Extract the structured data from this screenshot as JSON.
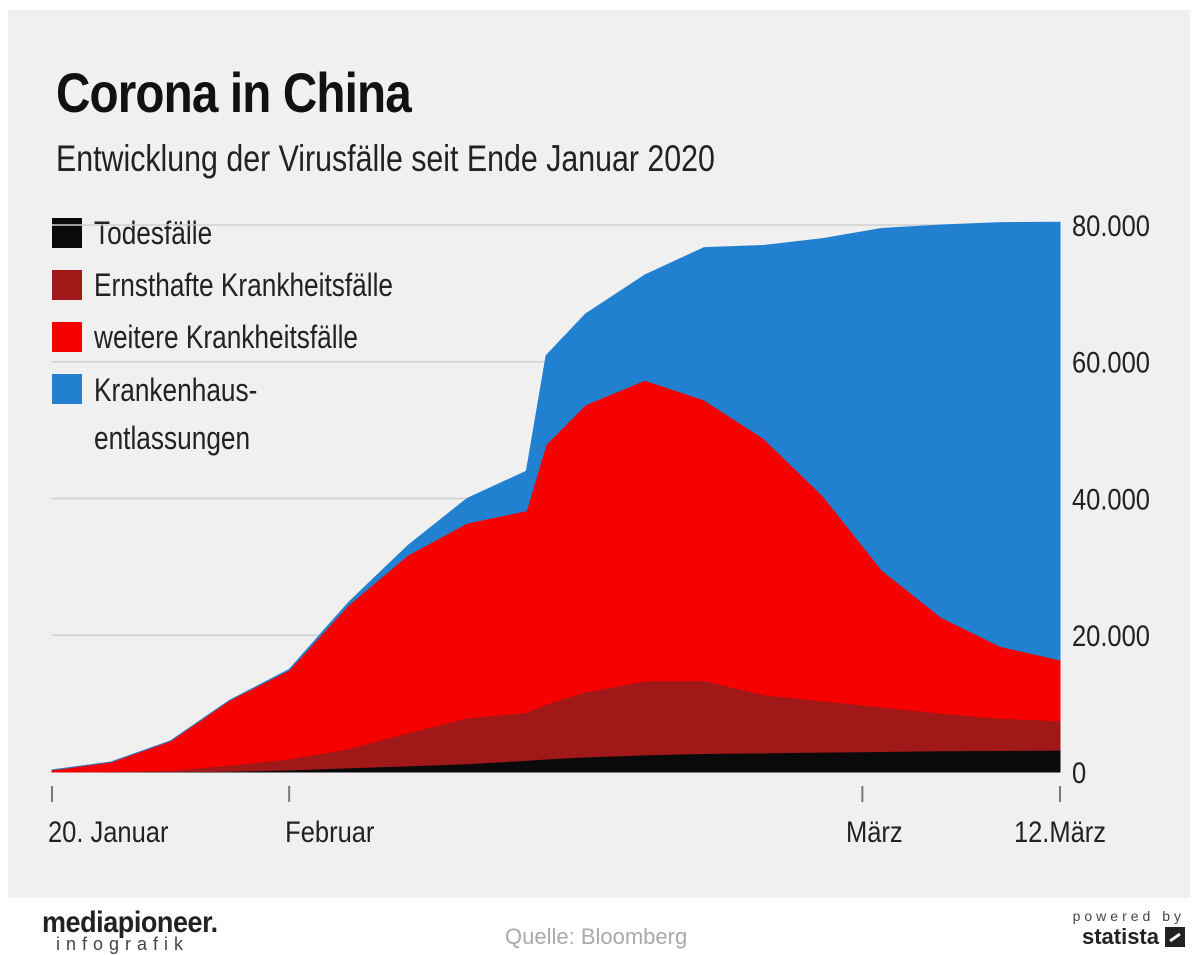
{
  "header": {
    "title": "Corona in China",
    "subtitle": "Entwicklung der Virusfälle seit Ende Januar 2020"
  },
  "colors": {
    "todesfaelle": "#0a0a0a",
    "ernsthafte": "#a01818",
    "weitere": "#f70000",
    "entlassungen": "#2280d0",
    "background": "#f0f0f0"
  },
  "footer": {
    "brand": "mediapioneer.",
    "brand_sub": "infografik",
    "source": "Quelle: Bloomberg",
    "powered_by": "powered by",
    "statista": "statista"
  },
  "chart_data": {
    "type": "area",
    "stacked": true,
    "x_unit": "days since 20. Januar 2020",
    "x": [
      0,
      3,
      6,
      9,
      12,
      15,
      18,
      21,
      24,
      25,
      27,
      30,
      33,
      36,
      39,
      42,
      45,
      48,
      51
    ],
    "x_ticks": [
      {
        "x": 0,
        "label": "20. Januar"
      },
      {
        "x": 12,
        "label": "Februar"
      },
      {
        "x": 41,
        "label": "März"
      },
      {
        "x": 51,
        "label": "12.März"
      }
    ],
    "ylim": [
      0,
      80000
    ],
    "y_ticks": [
      0,
      20000,
      40000,
      60000,
      80000
    ],
    "y_tick_labels": [
      "0",
      "20.000",
      "40.000",
      "60.000",
      "80.000"
    ],
    "y_axis_position": "right",
    "grid": true,
    "legend_position": "top-left",
    "series": [
      {
        "name": "Todesfälle",
        "color_key": "todesfaelle",
        "values": [
          0,
          10,
          40,
          100,
          300,
          600,
          900,
          1200,
          1700,
          1900,
          2200,
          2500,
          2700,
          2800,
          2900,
          3000,
          3100,
          3150,
          3200
        ]
      },
      {
        "name": "Ernsthafte Krankheitsfälle",
        "color_key": "ernsthafte",
        "values": [
          0,
          50,
          200,
          900,
          1600,
          2800,
          4800,
          6700,
          7000,
          8000,
          9500,
          10800,
          10700,
          8500,
          7500,
          6500,
          5500,
          4700,
          4300
        ]
      },
      {
        "name": "weitere Krankheitsfälle",
        "color_key": "weitere",
        "values": [
          300,
          1400,
          4300,
          9500,
          13000,
          21000,
          26000,
          28500,
          29500,
          38000,
          42000,
          44000,
          41000,
          37500,
          30000,
          20000,
          14000,
          10500,
          8900
        ]
      },
      {
        "name": "Krankenhaus-entlassungen",
        "color_key": "entlassungen",
        "values": [
          0,
          0,
          0,
          0,
          100,
          400,
          1400,
          3600,
          5800,
          13000,
          13300,
          15400,
          22300,
          28200,
          37600,
          50000,
          57400,
          62000,
          64000
        ]
      }
    ]
  }
}
